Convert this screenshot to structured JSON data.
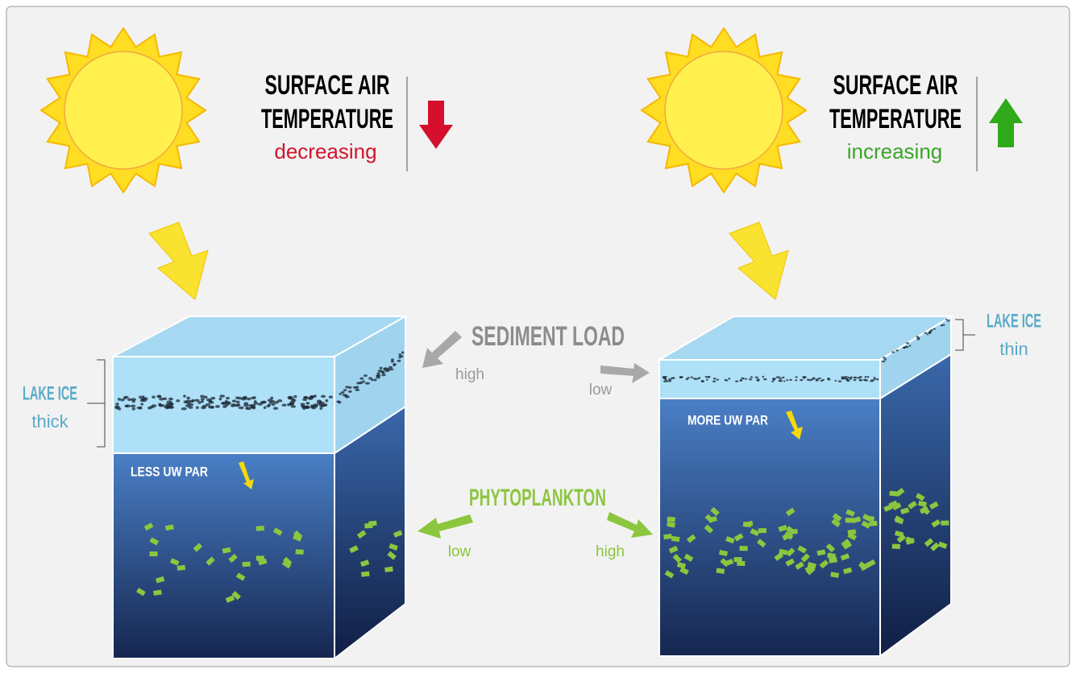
{
  "left_panel": {
    "title_lines": [
      "SURFACE AIR",
      "TEMPERATURE"
    ],
    "trend": "decreasing",
    "lake_ice": {
      "label": "LAKE ICE",
      "thickness": "thick"
    },
    "par_label": "LESS UW PAR"
  },
  "right_panel": {
    "title_lines": [
      "SURFACE AIR",
      "TEMPERATURE"
    ],
    "trend": "increasing",
    "lake_ice": {
      "label": "LAKE ICE",
      "thickness": "thin"
    },
    "par_label": "MORE UW PAR"
  },
  "sediment_load": {
    "label": "SEDIMENT LOAD",
    "left": "high",
    "right": "low"
  },
  "phytoplankton": {
    "label": "PHYTOPLANKTON",
    "left": "low",
    "right": "high"
  }
}
